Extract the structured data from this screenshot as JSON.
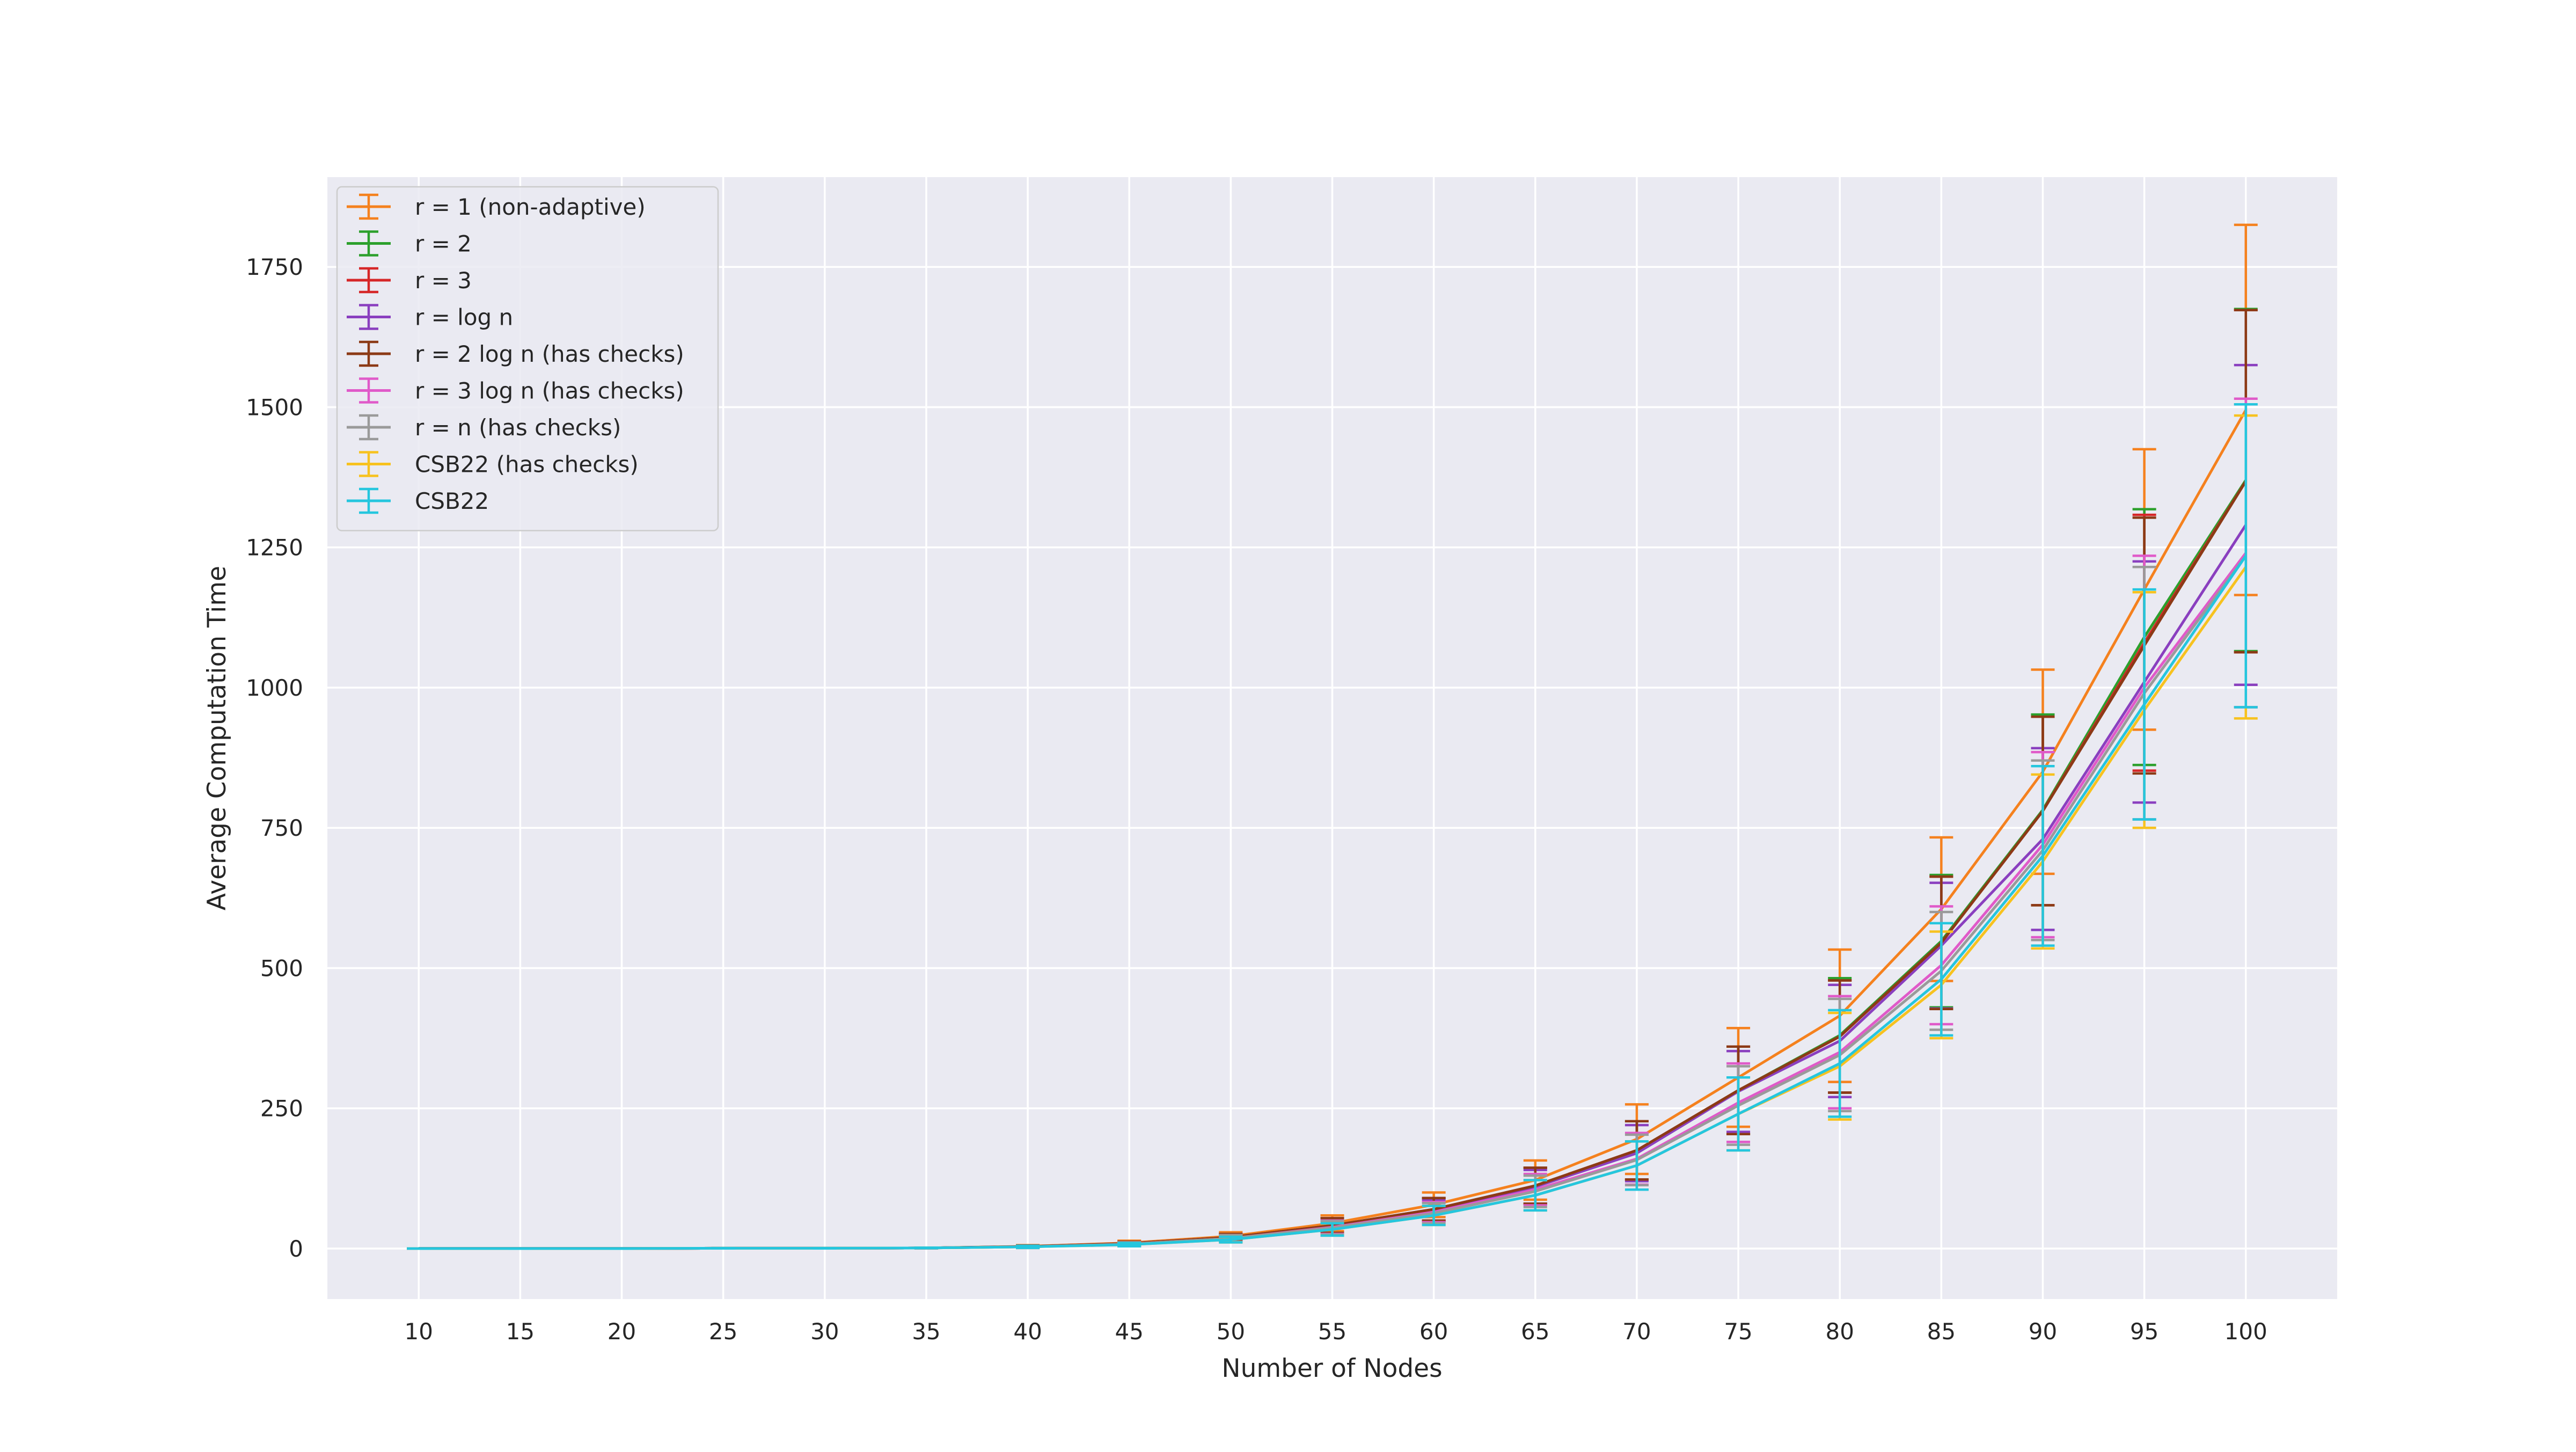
{
  "chart_data": {
    "type": "line",
    "title": "",
    "xlabel": "Number of Nodes",
    "ylabel": "Average Computation Time",
    "x": [
      10,
      15,
      20,
      25,
      30,
      35,
      40,
      45,
      50,
      55,
      60,
      65,
      70,
      75,
      80,
      85,
      90,
      95,
      100
    ],
    "xlim": [
      5.5,
      104.5
    ],
    "ylim": [
      -90,
      1910
    ],
    "yticks": [
      0,
      250,
      500,
      750,
      1000,
      1250,
      1500,
      1750
    ],
    "grid": true,
    "legend_position": "upper-left",
    "error_bars": true,
    "series": [
      {
        "name": "r = 1 (non-adaptive)",
        "color": "#f5811e",
        "values": [
          0,
          0,
          0,
          0.5,
          0.5,
          1,
          4,
          10,
          22,
          45,
          78,
          122,
          195,
          305,
          415,
          605,
          850,
          1175,
          1495
        ],
        "errors": [
          0,
          0,
          0,
          0.3,
          0.3,
          0.5,
          2,
          4,
          7,
          14,
          22,
          35,
          62,
          88,
          118,
          128,
          182,
          250,
          330
        ]
      },
      {
        "name": "r = 2",
        "color": "#2ca02c",
        "values": [
          0,
          0,
          0,
          0.5,
          0.5,
          1,
          3.5,
          9,
          20,
          41,
          70,
          112,
          175,
          282,
          380,
          548,
          782,
          1090,
          1370
        ],
        "errors": [
          0,
          0,
          0,
          0.3,
          0.3,
          0.5,
          2,
          3,
          6,
          13,
          20,
          32,
          52,
          78,
          102,
          118,
          170,
          228,
          305
        ]
      },
      {
        "name": "r = 3",
        "color": "#d62728",
        "values": [
          0,
          0,
          0,
          0.5,
          0.5,
          1,
          3.5,
          9,
          20,
          41,
          70,
          112,
          175,
          282,
          378,
          545,
          780,
          1080,
          1368
        ],
        "errors": [
          0,
          0,
          0,
          0.3,
          0.3,
          0.5,
          2,
          3,
          6,
          13,
          20,
          32,
          52,
          78,
          100,
          118,
          168,
          228,
          305
        ]
      },
      {
        "name": "r = log n",
        "color": "#8a3fbf",
        "values": [
          0,
          0,
          0,
          0.5,
          0.5,
          1,
          3.5,
          9,
          20,
          40,
          68,
          110,
          170,
          280,
          370,
          540,
          730,
          1010,
          1290
        ],
        "errors": [
          0,
          0,
          0,
          0.3,
          0.3,
          0.5,
          2,
          3,
          6,
          12,
          19,
          30,
          50,
          72,
          100,
          112,
          162,
          215,
          285
        ]
      },
      {
        "name": "r = 2 log n (has checks)",
        "color": "#8c3a16",
        "values": [
          0,
          0,
          0,
          0.5,
          0.5,
          1,
          3.5,
          9,
          20,
          41,
          70,
          112,
          175,
          282,
          378,
          545,
          780,
          1075,
          1368
        ],
        "errors": [
          0,
          0,
          0,
          0.3,
          0.3,
          0.5,
          2,
          3,
          6,
          13,
          20,
          32,
          52,
          78,
          100,
          118,
          168,
          228,
          305
        ]
      },
      {
        "name": "r = 3 log n (has checks)",
        "color": "#e05ac9",
        "values": [
          0,
          0,
          0,
          0.5,
          0.5,
          1,
          3,
          8,
          18,
          38,
          65,
          105,
          160,
          260,
          350,
          505,
          720,
          1000,
          1240
        ],
        "errors": [
          0,
          0,
          0,
          0.3,
          0.3,
          0.5,
          2,
          3,
          6,
          12,
          18,
          28,
          46,
          70,
          100,
          105,
          165,
          235,
          275
        ]
      },
      {
        "name": "r = n (has checks)",
        "color": "#9a9a9a",
        "values": [
          0,
          0,
          0,
          0.5,
          0.5,
          1,
          3,
          8,
          18,
          37,
          63,
          102,
          158,
          255,
          345,
          495,
          710,
          990,
          1235
        ],
        "errors": [
          0,
          0,
          0,
          0.3,
          0.3,
          0.5,
          2,
          3,
          6,
          12,
          18,
          28,
          45,
          70,
          100,
          105,
          160,
          225,
          270
        ]
      },
      {
        "name": "CSB22 (has checks)",
        "color": "#f7c21f",
        "values": [
          0,
          0,
          0,
          0.5,
          0.5,
          1,
          3,
          7,
          16,
          34,
          59,
          95,
          148,
          240,
          325,
          470,
          690,
          960,
          1215
        ],
        "errors": [
          0,
          0,
          0,
          0.3,
          0.3,
          0.5,
          2,
          3,
          5,
          11,
          17,
          27,
          43,
          65,
          95,
          95,
          155,
          210,
          270
        ]
      },
      {
        "name": "CSB22",
        "color": "#25c6de",
        "values": [
          0,
          0,
          0,
          0.5,
          0.5,
          1,
          3,
          7,
          16,
          34,
          59,
          95,
          148,
          240,
          330,
          480,
          700,
          970,
          1235
        ],
        "errors": [
          0,
          0,
          0,
          0.3,
          0.3,
          0.5,
          2,
          3,
          5,
          11,
          17,
          27,
          43,
          65,
          95,
          100,
          160,
          205,
          270
        ]
      }
    ]
  }
}
